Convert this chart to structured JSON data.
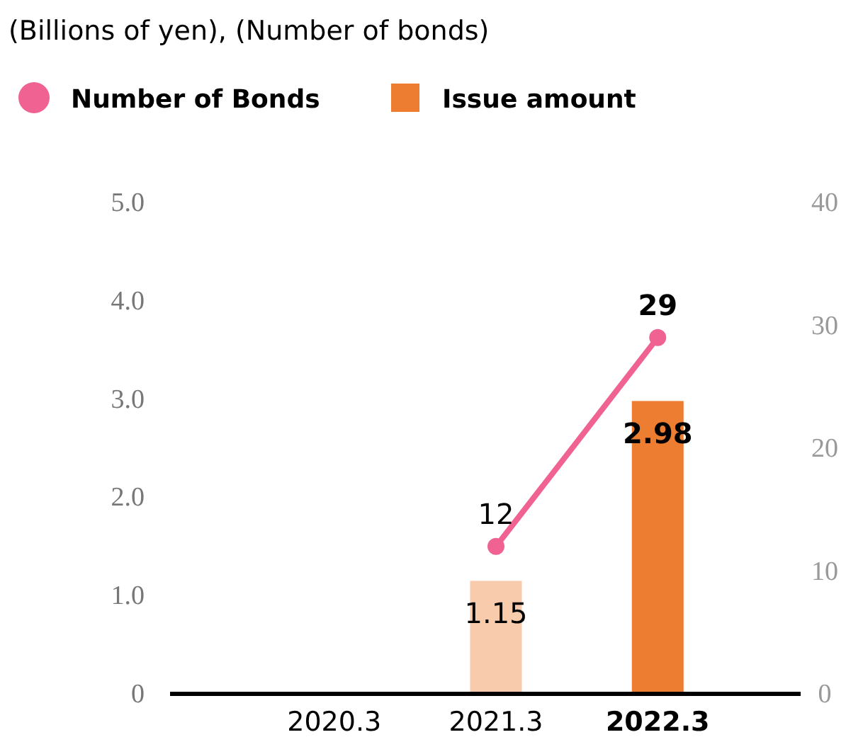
{
  "chart_data": {
    "type": "bar",
    "title": "(Billions of yen), (Number of bonds)",
    "categories": [
      "2020.3",
      "2021.3",
      "2022.3"
    ],
    "series": [
      {
        "name": "Number of Bonds",
        "type": "line",
        "axis": "y2",
        "color": "#f06292",
        "values": [
          null,
          12,
          29
        ]
      },
      {
        "name": "Issue amount",
        "color": "#ed7d31",
        "colors": [
          null,
          "#f8cbad",
          "#ed7d31"
        ],
        "values": [
          null,
          1.15,
          2.98
        ]
      }
    ],
    "ylim": [
      0,
      5
    ],
    "yticks": [
      0,
      {
        "value": 1,
        "label": "1.0"
      },
      {
        "value": 2,
        "label": "2.0"
      },
      {
        "value": 3,
        "label": "3.0"
      },
      {
        "value": 4,
        "label": "4.0"
      },
      {
        "value": 5,
        "label": "5.0"
      }
    ],
    "y2lim": [
      0,
      40
    ],
    "y2ticks": [
      0,
      10,
      20,
      30,
      40
    ],
    "data_labels": true,
    "legend": "top left",
    "marker": "circle",
    "grid": false
  }
}
